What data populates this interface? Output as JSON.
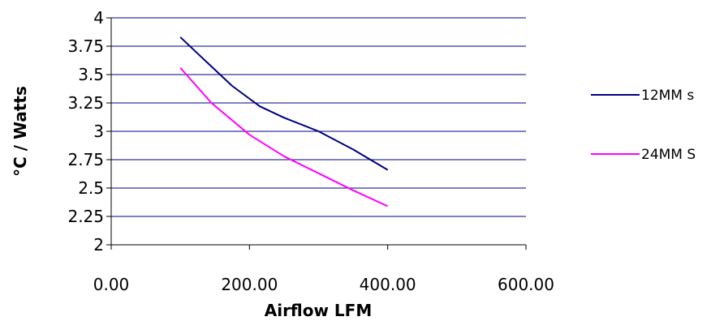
{
  "chart_data": {
    "type": "line",
    "title": "",
    "xlabel": "Airflow LFM",
    "ylabel": "°C / Watts",
    "xlim": [
      0,
      600
    ],
    "ylim": [
      2,
      4
    ],
    "x_ticks": [
      "0.00",
      "200.00",
      "400.00",
      "600.00"
    ],
    "y_ticks": [
      "2",
      "2.25",
      "2.5",
      "2.75",
      "3",
      "3.25",
      "3.5",
      "3.75",
      "4"
    ],
    "grid": "horizontal",
    "legend_position": "right",
    "series": [
      {
        "name": "12MM s",
        "color": "#000080",
        "points": [
          [
            100,
            3.83
          ],
          [
            140,
            3.6
          ],
          [
            175,
            3.4
          ],
          [
            215,
            3.22
          ],
          [
            250,
            3.12
          ],
          [
            300,
            3.0
          ],
          [
            350,
            2.84
          ],
          [
            400,
            2.66
          ]
        ]
      },
      {
        "name": "24MM S",
        "color": "#ff00ff",
        "points": [
          [
            100,
            3.56
          ],
          [
            145,
            3.25
          ],
          [
            200,
            2.97
          ],
          [
            250,
            2.78
          ],
          [
            300,
            2.63
          ],
          [
            350,
            2.48
          ],
          [
            400,
            2.34
          ]
        ]
      }
    ]
  }
}
